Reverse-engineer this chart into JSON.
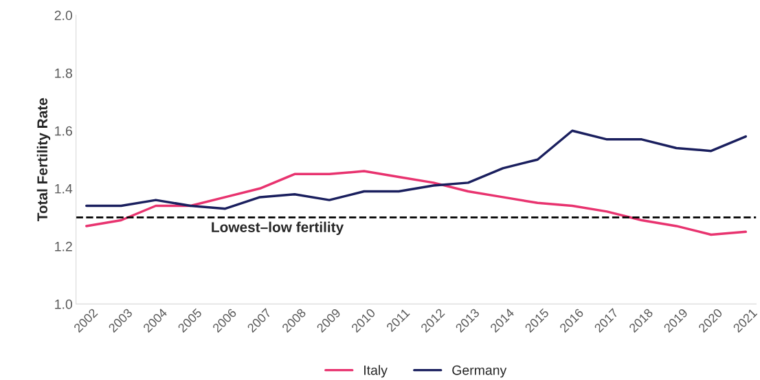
{
  "chart_data": {
    "type": "line",
    "ylabel": "Total Fertility Rate",
    "categories": [
      "2002",
      "2003",
      "2004",
      "2005",
      "2006",
      "2007",
      "2008",
      "2009",
      "2010",
      "2011",
      "2012",
      "2013",
      "2014",
      "2015",
      "2016",
      "2017",
      "2018",
      "2019",
      "2020",
      "2021"
    ],
    "series": [
      {
        "name": "Italy",
        "color": "#e8336f",
        "values": [
          1.27,
          1.29,
          1.34,
          1.34,
          1.37,
          1.4,
          1.45,
          1.45,
          1.46,
          1.44,
          1.42,
          1.39,
          1.37,
          1.35,
          1.34,
          1.32,
          1.29,
          1.27,
          1.24,
          1.25
        ]
      },
      {
        "name": "Germany",
        "color": "#1a1f5e",
        "values": [
          1.34,
          1.34,
          1.36,
          1.34,
          1.33,
          1.37,
          1.38,
          1.36,
          1.39,
          1.39,
          1.41,
          1.42,
          1.47,
          1.5,
          1.6,
          1.57,
          1.57,
          1.54,
          1.53,
          1.58
        ]
      }
    ],
    "ylim": [
      1.0,
      2.0
    ],
    "yticks": [
      {
        "value": 1.0,
        "label": "1.0"
      },
      {
        "value": 1.2,
        "label": "1.2"
      },
      {
        "value": 1.4,
        "label": "1.4"
      },
      {
        "value": 1.6,
        "label": "1.6"
      },
      {
        "value": 1.8,
        "label": "1.8"
      },
      {
        "value": 2.0,
        "label": "2.0"
      }
    ],
    "ref_lines": [
      {
        "axis": "y",
        "value": 1.3,
        "label": "Lowest–low fertility",
        "color": "#000000",
        "line_style": "dashed"
      }
    ],
    "grid": false,
    "legend": "bottom",
    "marker": "none",
    "line_style": "solid"
  }
}
